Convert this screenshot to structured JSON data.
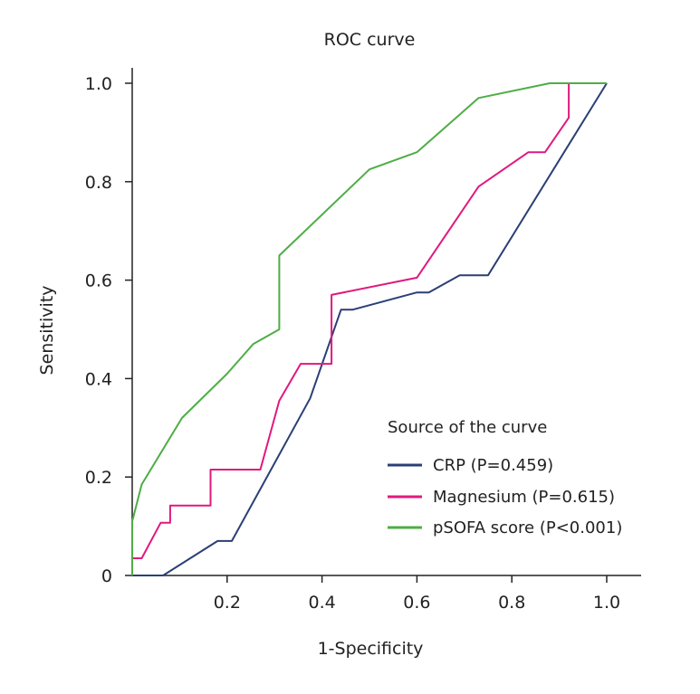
{
  "chart_data": {
    "type": "line",
    "title": "ROC curve",
    "xlabel": "1-Specificity",
    "ylabel": "Sensitivity",
    "xlim": [
      0,
      1.08
    ],
    "ylim": [
      0,
      1.03
    ],
    "xticks": [
      {
        "value": 0.2,
        "label": "0.2"
      },
      {
        "value": 0.4,
        "label": "0.4"
      },
      {
        "value": 0.6,
        "label": "0.6"
      },
      {
        "value": 0.8,
        "label": "0.8"
      },
      {
        "value": 1.0,
        "label": "1.0"
      }
    ],
    "yticks": [
      {
        "value": 0.0,
        "label": "0"
      },
      {
        "value": 0.2,
        "label": "0.2"
      },
      {
        "value": 0.4,
        "label": "0.4"
      },
      {
        "value": 0.6,
        "label": "0.6"
      },
      {
        "value": 0.8,
        "label": "0.8"
      },
      {
        "value": 1.0,
        "label": "1.0"
      }
    ],
    "grid": false,
    "legend": {
      "title": "Source of the curve",
      "position": "bottom-right"
    },
    "series": [
      {
        "name": "CRP",
        "label": "CRP (P=0.459)",
        "color": "#2a3f75",
        "x": [
          0,
          0.065,
          0.18,
          0.21,
          0.375,
          0.44,
          0.465,
          0.6,
          0.625,
          0.69,
          0.75,
          1.0
        ],
        "y": [
          0,
          0,
          0.07,
          0.07,
          0.36,
          0.54,
          0.54,
          0.575,
          0.575,
          0.61,
          0.61,
          1.0
        ]
      },
      {
        "name": "Magnesium",
        "label": "Magnesium (P=0.615)",
        "color": "#e0197e",
        "x": [
          0,
          0,
          0.02,
          0.06,
          0.08,
          0.08,
          0.165,
          0.165,
          0.27,
          0.31,
          0.355,
          0.42,
          0.42,
          0.6,
          0.73,
          0.835,
          0.87,
          0.92,
          0.92,
          1.0
        ],
        "y": [
          0,
          0.035,
          0.035,
          0.107,
          0.107,
          0.142,
          0.142,
          0.215,
          0.215,
          0.355,
          0.43,
          0.43,
          0.57,
          0.605,
          0.79,
          0.86,
          0.86,
          0.93,
          1.0,
          1.0
        ]
      },
      {
        "name": "pSOFA score",
        "label": "pSOFA score (P<0.001)",
        "color": "#4ead45",
        "x": [
          0,
          0,
          0.02,
          0.105,
          0.2,
          0.255,
          0.31,
          0.31,
          0.5,
          0.6,
          0.73,
          0.88,
          1.0
        ],
        "y": [
          0,
          0.11,
          0.185,
          0.32,
          0.41,
          0.47,
          0.5,
          0.65,
          0.825,
          0.86,
          0.97,
          1.0,
          1.0
        ]
      }
    ]
  }
}
